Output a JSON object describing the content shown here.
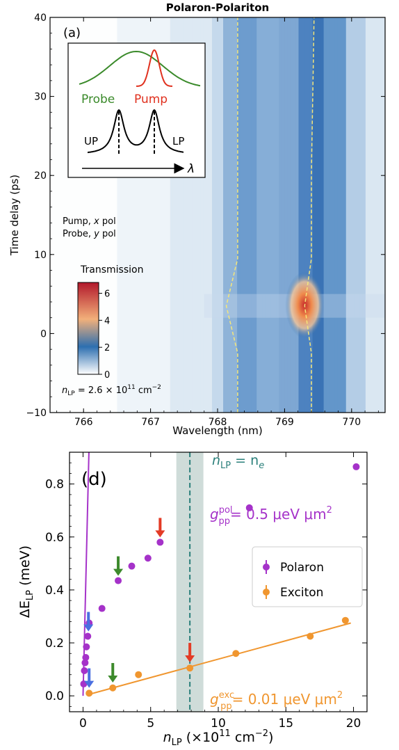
{
  "chart_data": [
    {
      "type": "heatmap",
      "title": "Polaron-Polariton",
      "panel_label": "(a)",
      "xlabel": "Wavelength (nm)",
      "ylabel": "Time delay (ps)",
      "xlim": [
        765.5,
        770.5
      ],
      "ylim": [
        -10,
        40
      ],
      "xticks": [
        766,
        767,
        768,
        769,
        770
      ],
      "yticks": [
        -10,
        0,
        10,
        20,
        30,
        40
      ],
      "inset": {
        "probe_label": "Probe",
        "pump_label": "Pump",
        "up_label": "UP",
        "lp_label": "LP",
        "axis_label": "λ"
      },
      "annotations": [
        "Pump, x pol",
        "Probe, y pol"
      ],
      "colorbar": {
        "label": "Transmission",
        "range": [
          0,
          6.8
        ],
        "ticks": [
          0,
          2,
          4,
          6
        ],
        "colors": [
          "#ffffff",
          "#2d6fb0",
          "#f2b07a",
          "#b2182b"
        ]
      },
      "density_label": {
        "prefix": "n",
        "sub": "LP",
        "text": " = 2.6 × 10",
        "sup": "11",
        "unit": " cm",
        "unit_sup": "−2"
      },
      "modes": [
        {
          "name": "UP",
          "center_nm": 768.3,
          "shift_nm": 768.13,
          "shift_delay_ps": 3.5
        },
        {
          "name": "LP",
          "center_nm": 769.4,
          "shift_nm": 769.3,
          "shift_delay_ps": 3.5
        }
      ],
      "hotspot": {
        "wavelength_nm": 769.3,
        "delay_ps": 3.6,
        "peak": 6.6
      }
    },
    {
      "type": "scatter",
      "panel_label": "(d)",
      "xlabel": {
        "main": "n",
        "sub": "LP",
        "rest": " (×10",
        "sup": "11",
        "rest2": " cm",
        "sup2": "−2",
        "end": ")"
      },
      "ylabel": {
        "main": "ΔE",
        "sub": "LP",
        "rest": " (meV)"
      },
      "xlim": [
        -1,
        21
      ],
      "ylim": [
        -0.06,
        0.92
      ],
      "xticks": [
        0,
        5,
        10,
        15,
        20
      ],
      "yticks": [
        0.0,
        0.2,
        0.4,
        0.6,
        0.8
      ],
      "xtick_labels": [
        "0",
        "5",
        "10",
        "15",
        "20"
      ],
      "ytick_labels": [
        "0.0",
        "0.2",
        "0.4",
        "0.6",
        "0.8"
      ],
      "legend": {
        "placement": "right",
        "entries": [
          "Polaron",
          "Exciton"
        ]
      },
      "series": [
        {
          "name": "Polaron",
          "color": "#a532c9",
          "x": [
            0.05,
            0.1,
            0.15,
            0.2,
            0.25,
            0.35,
            0.45,
            1.4,
            2.6,
            3.6,
            4.8,
            5.7,
            12.3,
            20.2
          ],
          "y": [
            0.045,
            0.095,
            0.125,
            0.145,
            0.185,
            0.225,
            0.275,
            0.33,
            0.435,
            0.49,
            0.52,
            0.58,
            0.71,
            0.865
          ],
          "fit_slope": 2.2
        },
        {
          "name": "Exciton",
          "color": "#f0962f",
          "x": [
            0.45,
            2.2,
            4.1,
            7.9,
            11.3,
            16.8,
            19.4
          ],
          "y": [
            0.01,
            0.03,
            0.08,
            0.105,
            0.16,
            0.225,
            0.285
          ],
          "fit": {
            "x0": 0.4,
            "y0": 0.005,
            "x1": 19.8,
            "y1": 0.275
          }
        }
      ],
      "band": {
        "x0": 6.9,
        "x1": 8.9,
        "x_line": 7.9,
        "label": {
          "main": "n",
          "sub": "LP",
          "mid": " = n",
          "sub2": "e"
        }
      },
      "fit_labels": [
        {
          "text": "g",
          "sup": "pol",
          "sub": "pp",
          "value": "= 0.5 μeV μm",
          "exp": "2",
          "color": "#a532c9"
        },
        {
          "text": "g",
          "sup": "exc",
          "sub": "pp",
          "value": "= 0.01 μeV μm",
          "exp": "2",
          "color": "#f0962f"
        }
      ],
      "arrows": [
        {
          "color": "#4a6fe0",
          "x": 0.4,
          "y_tip": 0.225
        },
        {
          "color": "#4a6fe0",
          "x": 0.45,
          "y_tip": 0.012
        },
        {
          "color": "#3d8a2c",
          "x": 2.6,
          "y_tip": 0.435
        },
        {
          "color": "#3d8a2c",
          "x": 2.2,
          "y_tip": 0.032
        },
        {
          "color": "#e33b26",
          "x": 5.7,
          "y_tip": 0.58
        },
        {
          "color": "#e33b26",
          "x": 7.9,
          "y_tip": 0.108
        }
      ]
    }
  ]
}
